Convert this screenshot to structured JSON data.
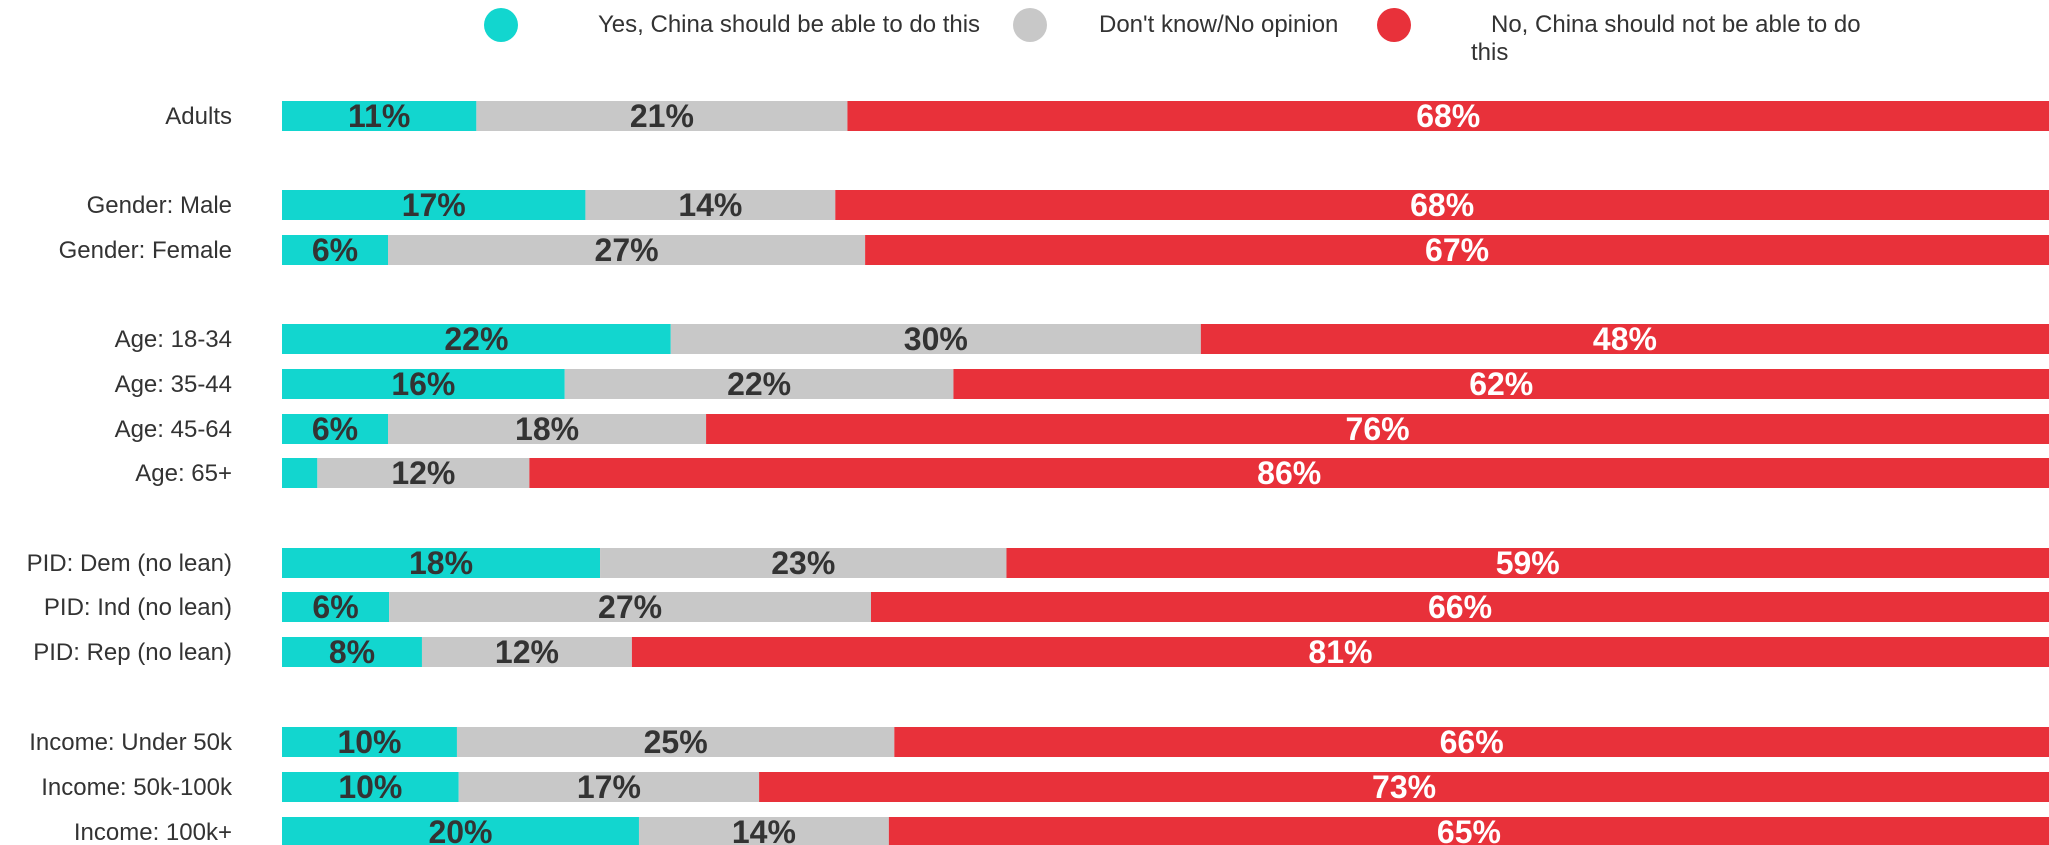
{
  "chart_data": {
    "type": "bar",
    "orientation": "horizontal",
    "stacked": true,
    "normalized": true,
    "legend_position": "top",
    "grid": false,
    "categories": [
      "Adults",
      "Gender: Male",
      "Gender: Female",
      "Age: 18-34",
      "Age: 35-44",
      "Age: 45-64",
      "Age: 65+",
      "PID: Dem (no lean)",
      "PID: Ind (no lean)",
      "PID: Rep (no lean)",
      "Income: Under 50k",
      "Income: 50k-100k",
      "Income: 100k+"
    ],
    "series": [
      {
        "name": "Yes, China should be able to do this",
        "color": "#12d6cf",
        "label_color": "#333333",
        "values": [
          11,
          17,
          6,
          22,
          16,
          6,
          2,
          18,
          6,
          8,
          10,
          10,
          20
        ],
        "labels": [
          "11%",
          "17%",
          "6%",
          "22%",
          "16%",
          "6%",
          "",
          "18%",
          "6%",
          "8%",
          "10%",
          "10%",
          "20%"
        ]
      },
      {
        "name": "Don't know/No opinion",
        "color": "#c8c8c8",
        "label_color": "#333333",
        "values": [
          21,
          14,
          27,
          30,
          22,
          18,
          12,
          23,
          27,
          12,
          25,
          17,
          14
        ],
        "labels": [
          "21%",
          "14%",
          "27%",
          "30%",
          "22%",
          "18%",
          "12%",
          "23%",
          "27%",
          "12%",
          "25%",
          "17%",
          "14%"
        ]
      },
      {
        "name": "No, China should not be able to do this",
        "color": "#e8313a",
        "label_color": "#ffffff",
        "values": [
          68,
          68,
          67,
          48,
          62,
          76,
          86,
          59,
          66,
          81,
          66,
          73,
          65
        ],
        "labels": [
          "68%",
          "68%",
          "67%",
          "48%",
          "62%",
          "76%",
          "86%",
          "59%",
          "66%",
          "81%",
          "66%",
          "73%",
          "65%"
        ]
      }
    ]
  }
}
